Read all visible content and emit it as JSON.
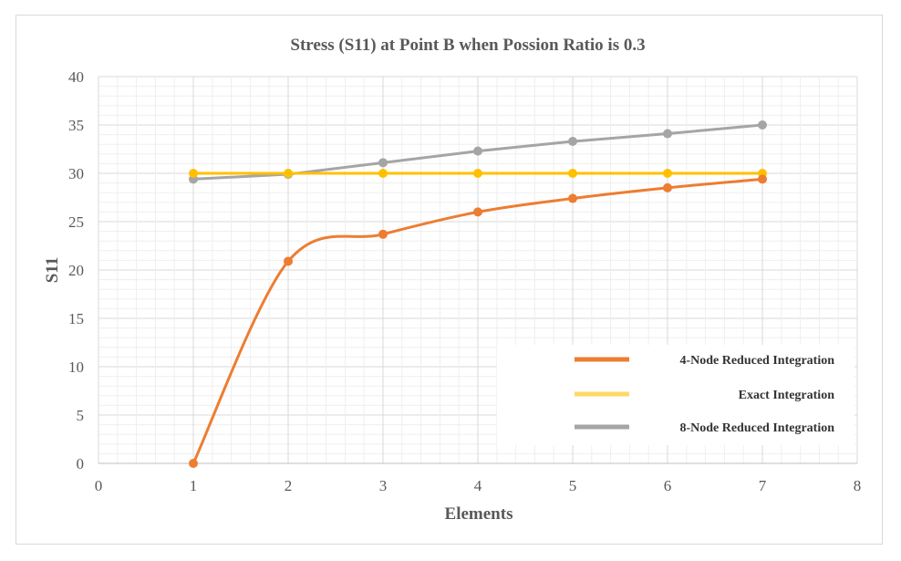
{
  "chart_data": {
    "type": "line",
    "title": "Stress (S11) at Point B when Possion Ratio is 0.3",
    "xlabel": "Elements",
    "ylabel": "S11",
    "xlim": [
      0,
      8
    ],
    "ylim": [
      0,
      40
    ],
    "x_ticks": [
      0,
      1,
      2,
      3,
      4,
      5,
      6,
      7,
      8
    ],
    "y_ticks": [
      0,
      5,
      10,
      15,
      20,
      25,
      30,
      35,
      40
    ],
    "grid": true,
    "legend_position": "bottom-right",
    "x": [
      1,
      2,
      3,
      4,
      5,
      6,
      7
    ],
    "series": [
      {
        "name": "4-Node Reduced Integration",
        "color": "#ed7d31",
        "smooth": true,
        "values": [
          0,
          20.9,
          23.7,
          26.0,
          27.4,
          28.5,
          29.4
        ]
      },
      {
        "name": "Exact Integration",
        "color": "#ffc000",
        "legend_color": "#ffd966",
        "smooth": false,
        "values": [
          30,
          30,
          30,
          30,
          30,
          30,
          30
        ]
      },
      {
        "name": "8-Node Reduced Integration",
        "color": "#a5a5a5",
        "smooth": false,
        "values": [
          29.4,
          29.9,
          31.1,
          32.3,
          33.3,
          34.1,
          35.0
        ]
      }
    ]
  }
}
